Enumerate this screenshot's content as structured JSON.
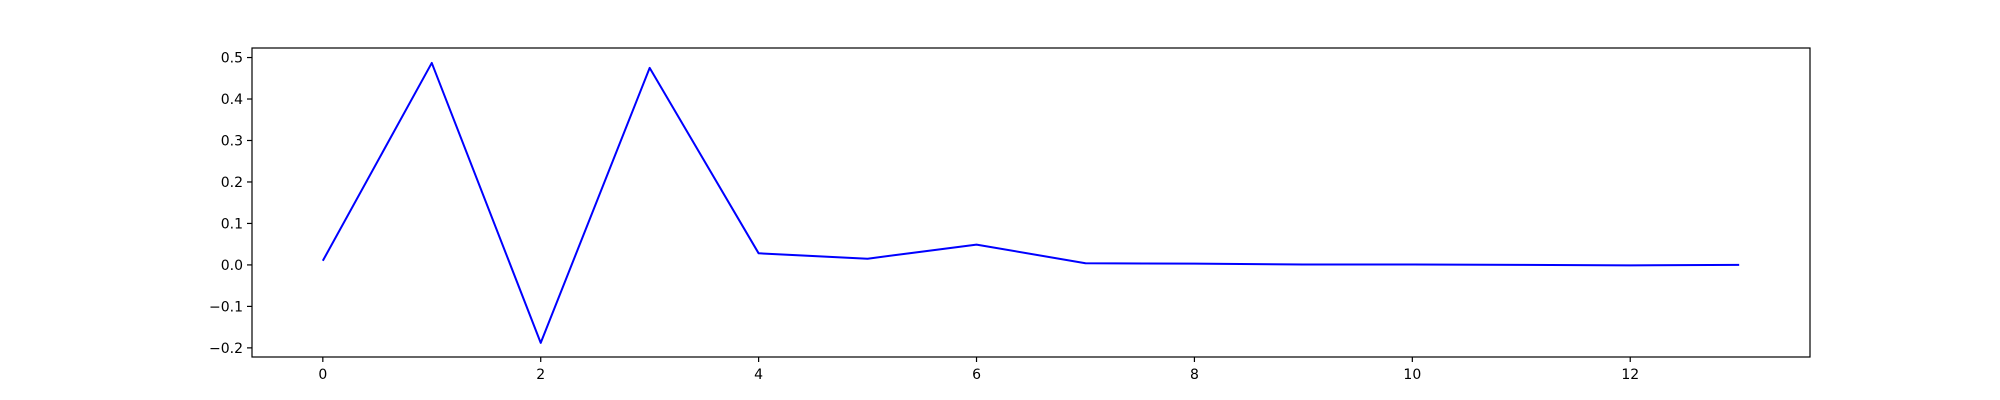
{
  "chart_data": {
    "type": "line",
    "title": "",
    "xlabel": "",
    "ylabel": "",
    "xlim": [
      -0.65,
      13.65
    ],
    "ylim": [
      -0.222,
      0.523
    ],
    "x_ticks": [
      0,
      2,
      4,
      6,
      8,
      10,
      12
    ],
    "x_tick_labels": [
      "0",
      "2",
      "4",
      "6",
      "8",
      "10",
      "12"
    ],
    "y_ticks": [
      -0.2,
      -0.1,
      0.0,
      0.1,
      0.2,
      0.3,
      0.4,
      0.5
    ],
    "y_tick_labels": [
      "−0.2",
      "−0.1",
      "0.0",
      "0.1",
      "0.2",
      "0.3",
      "0.4",
      "0.5"
    ],
    "grid": false,
    "legend": "none",
    "series": [
      {
        "color": "#0000ff",
        "x": [
          0,
          1,
          2,
          3,
          4,
          5,
          6,
          7,
          8,
          9,
          10,
          11,
          12,
          13
        ],
        "y": [
          0.01,
          0.487,
          -0.188,
          0.475,
          0.028,
          0.015,
          0.049,
          0.004,
          0.003,
          0.001,
          0.001,
          0.0,
          -0.001,
          0.0
        ]
      }
    ]
  }
}
